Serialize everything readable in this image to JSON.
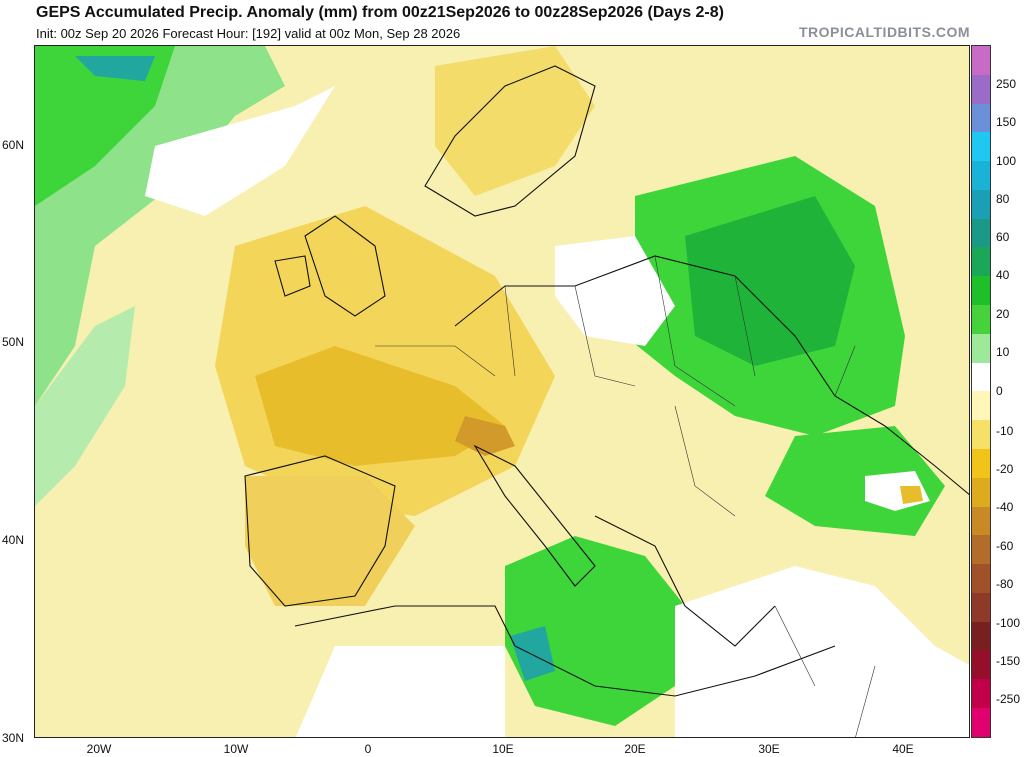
{
  "header": {
    "title": "GEPS Accumulated Precip. Anomaly (mm) from 00z21Sep2026 to 00z28Sep2026 (Days 2-8)",
    "subtitle": "Init: 00z Sep 20 2026   Forecast Hour: [192]   valid at 00z Mon, Sep 28 2026",
    "brand": "TROPICALTIDBITS.COM"
  },
  "axes": {
    "lat_labels": [
      "60N",
      "50N",
      "40N",
      "30N"
    ],
    "lon_labels": [
      "20W",
      "10W",
      "0",
      "10E",
      "20E",
      "30E",
      "40E"
    ]
  },
  "colorbar": {
    "labels": [
      "250",
      "150",
      "100",
      "80",
      "60",
      "40",
      "20",
      "10",
      "0",
      "-10",
      "-20",
      "-40",
      "-60",
      "-80",
      "-100",
      "-150",
      "-250"
    ],
    "colors": [
      "#c76bc7",
      "#9a6bc7",
      "#6b8fd9",
      "#1fc8f0",
      "#1ab2d6",
      "#1aa0b4",
      "#1a9a86",
      "#1aa858",
      "#1ec02a",
      "#46d23a",
      "#9ee89a",
      "#ffffff",
      "#fff6b8",
      "#f7e067",
      "#f0c419",
      "#ddab1e",
      "#c98a26",
      "#b36c2a",
      "#a1512a",
      "#8f3a29",
      "#7a1f20",
      "#960f2a",
      "#c2004a",
      "#e0006e"
    ]
  },
  "map": {
    "colors": {
      "land_border": "#111111",
      "dry_light": "#f7eeaa",
      "dry_mid": "#f2d654",
      "dry_strong": "#e3b22a",
      "wet_light": "#a9eea4",
      "wet_mid": "#3ed53b",
      "wet_strong": "#1fb33a",
      "wet_cyan": "#22a6a0",
      "neutral": "#ffffff"
    }
  }
}
